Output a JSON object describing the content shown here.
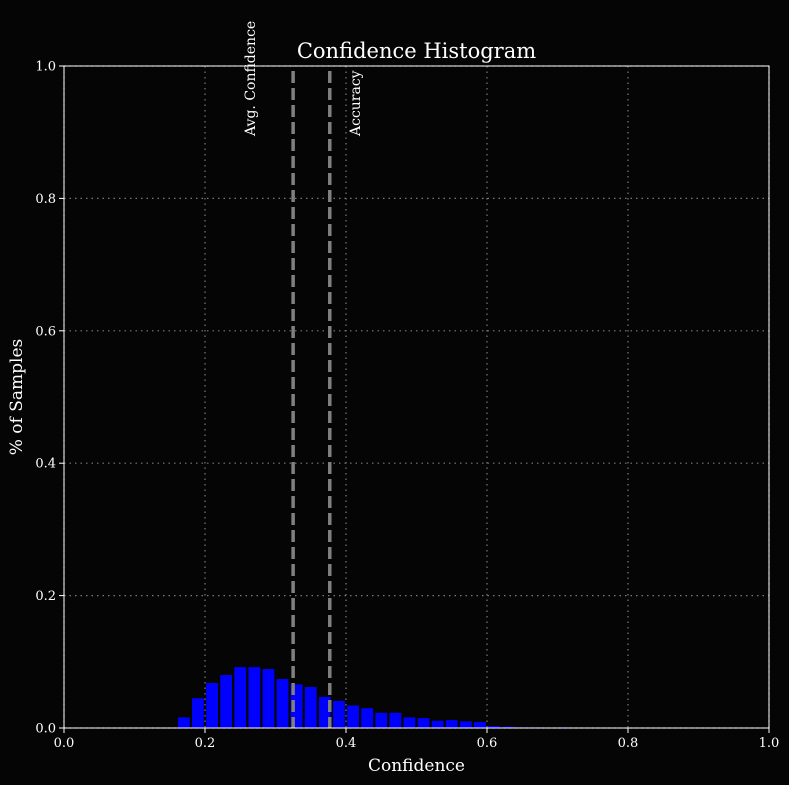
{
  "chart_data": {
    "type": "bar",
    "title": "Confidence Histogram",
    "xlabel": "Confidence",
    "ylabel": "% of Samples",
    "xlim": [
      0.0,
      1.0
    ],
    "ylim": [
      0.0,
      1.0
    ],
    "xticks": [
      "0.0",
      "0.2",
      "0.4",
      "0.6",
      "0.8",
      "1.0"
    ],
    "yticks": [
      "0.0",
      "0.2",
      "0.4",
      "0.6",
      "0.8",
      "1.0"
    ],
    "grid": true,
    "bin_width": 0.02,
    "bin_starts": [
      0.16,
      0.18,
      0.2,
      0.22,
      0.24,
      0.26,
      0.28,
      0.3,
      0.32,
      0.34,
      0.36,
      0.38,
      0.4,
      0.42,
      0.44,
      0.46,
      0.48,
      0.5,
      0.52,
      0.54,
      0.56,
      0.58,
      0.6,
      0.62,
      0.64,
      0.66,
      0.68,
      0.7,
      0.72
    ],
    "values": [
      0.016,
      0.045,
      0.068,
      0.08,
      0.092,
      0.092,
      0.089,
      0.074,
      0.066,
      0.062,
      0.047,
      0.041,
      0.034,
      0.03,
      0.023,
      0.023,
      0.016,
      0.015,
      0.011,
      0.012,
      0.01,
      0.009,
      0.003,
      0.002,
      0.001,
      0.001,
      0.0005,
      0.001,
      0.0005
    ],
    "avg_confidence": 0.325,
    "accuracy": 0.377,
    "annotations": [
      "Avg. Confidence",
      "Accuracy"
    ],
    "colors": {
      "bar": "#0000ff",
      "background": "#050505",
      "reference_line": "#808080",
      "grid": "#7a7a7a",
      "text": "#ffffff"
    }
  }
}
